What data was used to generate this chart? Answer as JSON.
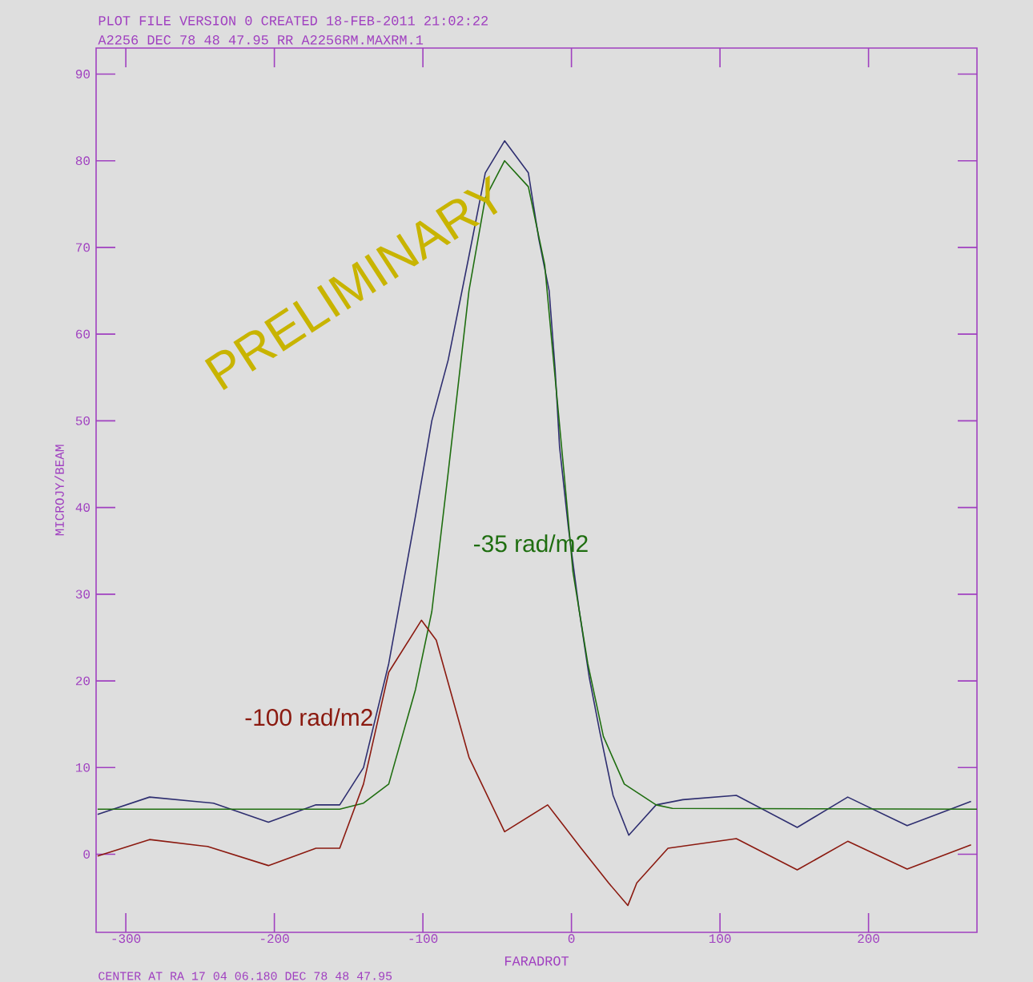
{
  "chart_data": {
    "type": "line",
    "title": "PLOT FILE VERSION 0  CREATED 18-FEB-2011 21:02:22",
    "subtitle": "A2256  DEC 78 48 47.95  RR  A2256RM.MAXRM.1",
    "xlabel": "FARADROT",
    "ylabel": "MICROJY/BEAM",
    "annotations": [
      "CENTER AT RA 17 04 06.180  DEC 78 48 47.95",
      "PRELIMINARY"
    ],
    "xlim": [
      -320,
      273
    ],
    "ylim": [
      -9,
      93
    ],
    "xticks": [
      -300,
      -200,
      -100,
      0,
      100,
      200
    ],
    "yticks": [
      0,
      10,
      20,
      30,
      40,
      50,
      60,
      70,
      80,
      90
    ],
    "grid": false,
    "legend": false,
    "marker": "none",
    "line_style": "solid",
    "series": [
      {
        "color": "#2e2e70",
        "x": [
          -319,
          -284,
          -241,
          -204,
          -172,
          -156,
          -140,
          -123,
          -105,
          -94,
          -83,
          -69,
          -58,
          -45,
          -29,
          -22,
          -15,
          -11,
          -8,
          -2,
          5,
          12,
          19,
          28,
          38.6,
          57,
          75,
          111,
          152,
          186,
          226,
          269
        ],
        "values": [
          4.6,
          6.6,
          5.9,
          3.7,
          5.7,
          5.7,
          10,
          22,
          39,
          50,
          57,
          69,
          78.6,
          82.3,
          78.6,
          71,
          65,
          56,
          47,
          37.6,
          28.4,
          20.4,
          14.2,
          6.8,
          2.2,
          5.7,
          6.3,
          6.8,
          3.1,
          6.6,
          3.3,
          6.1
        ]
      },
      {
        "name": "-35 rad/m2",
        "color": "#1f6e10",
        "x": [
          -319,
          -156,
          -140,
          -123,
          -105,
          -94,
          -83,
          -69,
          -58,
          -45,
          -29,
          -18,
          -11,
          -5,
          1,
          11,
          21.5,
          35.6,
          57,
          68,
          273
        ],
        "values": [
          5.2,
          5.2,
          5.9,
          8.1,
          19,
          28,
          44,
          65,
          75.7,
          80,
          77,
          68,
          55,
          44,
          32.6,
          22,
          13.6,
          8.1,
          5.7,
          5.3,
          5.2
        ]
      },
      {
        "name": "-100 rad/m2",
        "color": "#8b1a10",
        "x": [
          -319,
          -284,
          -245,
          -204,
          -172,
          -156,
          -140,
          -123,
          -101,
          -91,
          -69,
          -45,
          -16,
          6.5,
          25,
          38,
          44,
          65,
          111,
          152,
          186,
          226,
          269
        ],
        "values": [
          -0.2,
          1.7,
          0.9,
          -1.3,
          0.7,
          0.7,
          8.1,
          21,
          27,
          24.7,
          11.2,
          2.6,
          5.7,
          0.7,
          -3.3,
          -5.9,
          -3.3,
          0.7,
          1.8,
          -1.8,
          1.5,
          -1.7,
          1.1
        ]
      }
    ]
  }
}
